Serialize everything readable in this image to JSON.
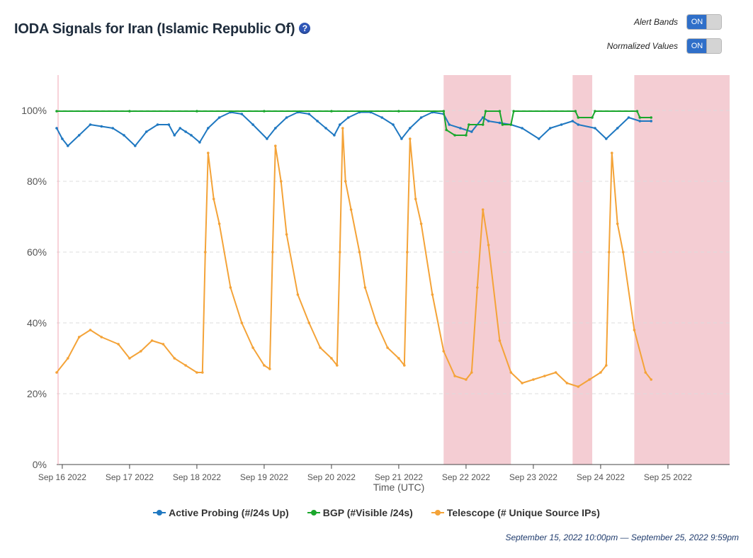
{
  "header": {
    "title": "IODA Signals for Iran (Islamic Republic Of)",
    "help_symbol": "?"
  },
  "toggles": [
    {
      "label": "Alert Bands",
      "state": "ON"
    },
    {
      "label": "Normalized Values",
      "state": "ON"
    }
  ],
  "time_range": "September 15, 2022 10:00pm — September 25, 2022 9:59pm",
  "colors": {
    "active_probing": "#1f78c1",
    "bgp": "#1aa72c",
    "telescope": "#f4a338",
    "alert_band": "#f4cdd3",
    "toggle_on": "#2f6fc9"
  },
  "chart_data": {
    "type": "line",
    "xlabel": "Time (UTC)",
    "ylabel": "",
    "x_domain": [
      "2022-09-15 22:00",
      "2022-09-25 22:00"
    ],
    "ylim": [
      0,
      110
    ],
    "y_ticks": [
      0,
      20,
      40,
      60,
      80,
      100
    ],
    "y_tick_labels": [
      "0%",
      "20%",
      "40%",
      "60%",
      "80%",
      "100%"
    ],
    "x_ticks": [
      {
        "x": "2022-09-16 00:00",
        "label": "Sep 16 2022"
      },
      {
        "x": "2022-09-17 00:00",
        "label": "Sep 17 2022"
      },
      {
        "x": "2022-09-18 00:00",
        "label": "Sep 18 2022"
      },
      {
        "x": "2022-09-19 00:00",
        "label": "Sep 19 2022"
      },
      {
        "x": "2022-09-20 00:00",
        "label": "Sep 20 2022"
      },
      {
        "x": "2022-09-21 00:00",
        "label": "Sep 21 2022"
      },
      {
        "x": "2022-09-22 00:00",
        "label": "Sep 22 2022"
      },
      {
        "x": "2022-09-23 00:00",
        "label": "Sep 23 2022"
      },
      {
        "x": "2022-09-24 00:00",
        "label": "Sep 24 2022"
      },
      {
        "x": "2022-09-25 00:00",
        "label": "Sep 25 2022"
      }
    ],
    "grid": true,
    "legend_position": "bottom",
    "alert_bands": [
      {
        "start": "2022-09-21 16:00",
        "end": "2022-09-22 16:00"
      },
      {
        "start": "2022-09-23 14:00",
        "end": "2022-09-23 21:00"
      },
      {
        "start": "2022-09-24 12:00",
        "end": "2022-09-25 22:00"
      }
    ],
    "series": [
      {
        "name": "Active Probing (#/24s Up)",
        "color_key": "active_probing",
        "points": [
          [
            "2022-09-15 22:00",
            95
          ],
          [
            "2022-09-16 00:00",
            92
          ],
          [
            "2022-09-16 02:00",
            90
          ],
          [
            "2022-09-16 06:00",
            93
          ],
          [
            "2022-09-16 10:00",
            96
          ],
          [
            "2022-09-16 14:00",
            95.5
          ],
          [
            "2022-09-16 18:00",
            95
          ],
          [
            "2022-09-16 22:00",
            93
          ],
          [
            "2022-09-17 02:00",
            90
          ],
          [
            "2022-09-17 06:00",
            94
          ],
          [
            "2022-09-17 10:00",
            96
          ],
          [
            "2022-09-17 14:00",
            96
          ],
          [
            "2022-09-17 16:00",
            93
          ],
          [
            "2022-09-17 18:00",
            95
          ],
          [
            "2022-09-17 20:00",
            94
          ],
          [
            "2022-09-17 22:00",
            93
          ],
          [
            "2022-09-18 01:00",
            91
          ],
          [
            "2022-09-18 04:00",
            95
          ],
          [
            "2022-09-18 08:00",
            98
          ],
          [
            "2022-09-18 12:00",
            99.5
          ],
          [
            "2022-09-18 16:00",
            99
          ],
          [
            "2022-09-18 20:00",
            96
          ],
          [
            "2022-09-19 01:00",
            92
          ],
          [
            "2022-09-19 04:00",
            95
          ],
          [
            "2022-09-19 08:00",
            98
          ],
          [
            "2022-09-19 12:00",
            99.5
          ],
          [
            "2022-09-19 16:00",
            99
          ],
          [
            "2022-09-19 19:00",
            97
          ],
          [
            "2022-09-19 22:00",
            95
          ],
          [
            "2022-09-20 01:00",
            93
          ],
          [
            "2022-09-20 03:00",
            96
          ],
          [
            "2022-09-20 06:00",
            98
          ],
          [
            "2022-09-20 10:00",
            99.5
          ],
          [
            "2022-09-20 14:00",
            99.5
          ],
          [
            "2022-09-20 18:00",
            98
          ],
          [
            "2022-09-20 22:00",
            96
          ],
          [
            "2022-09-21 01:00",
            92
          ],
          [
            "2022-09-21 04:00",
            95
          ],
          [
            "2022-09-21 08:00",
            98
          ],
          [
            "2022-09-21 12:00",
            99.5
          ],
          [
            "2022-09-21 16:00",
            99
          ],
          [
            "2022-09-21 18:00",
            96
          ],
          [
            "2022-09-21 22:00",
            95
          ],
          [
            "2022-09-22 02:00",
            94
          ],
          [
            "2022-09-22 06:00",
            98
          ],
          [
            "2022-09-22 08:00",
            97
          ],
          [
            "2022-09-22 12:00",
            96.5
          ],
          [
            "2022-09-22 16:00",
            96
          ],
          [
            "2022-09-22 20:00",
            95
          ],
          [
            "2022-09-23 02:00",
            92
          ],
          [
            "2022-09-23 06:00",
            95
          ],
          [
            "2022-09-23 10:00",
            96
          ],
          [
            "2022-09-23 14:00",
            97
          ],
          [
            "2022-09-23 16:00",
            96
          ],
          [
            "2022-09-23 22:00",
            95
          ],
          [
            "2022-09-24 02:00",
            92
          ],
          [
            "2022-09-24 06:00",
            95
          ],
          [
            "2022-09-24 10:00",
            98
          ],
          [
            "2022-09-24 14:00",
            97
          ],
          [
            "2022-09-24 18:00",
            97
          ]
        ]
      },
      {
        "name": "BGP (#Visible /24s)",
        "color_key": "bgp",
        "points": [
          [
            "2022-09-15 22:00",
            99.8
          ],
          [
            "2022-09-17 00:00",
            99.8
          ],
          [
            "2022-09-18 00:00",
            99.8
          ],
          [
            "2022-09-19 00:00",
            99.8
          ],
          [
            "2022-09-20 00:00",
            99.8
          ],
          [
            "2022-09-21 00:00",
            99.8
          ],
          [
            "2022-09-21 16:00",
            99.8
          ],
          [
            "2022-09-21 17:00",
            94.5
          ],
          [
            "2022-09-21 20:00",
            93
          ],
          [
            "2022-09-22 00:00",
            93
          ],
          [
            "2022-09-22 01:00",
            96
          ],
          [
            "2022-09-22 06:00",
            96
          ],
          [
            "2022-09-22 07:00",
            99.8
          ],
          [
            "2022-09-22 12:00",
            99.8
          ],
          [
            "2022-09-22 13:00",
            96
          ],
          [
            "2022-09-22 16:00",
            96
          ],
          [
            "2022-09-22 17:00",
            99.8
          ],
          [
            "2022-09-23 15:00",
            99.8
          ],
          [
            "2022-09-23 16:00",
            98
          ],
          [
            "2022-09-23 21:00",
            98
          ],
          [
            "2022-09-23 22:00",
            99.8
          ],
          [
            "2022-09-24 13:00",
            99.8
          ],
          [
            "2022-09-24 14:00",
            98
          ],
          [
            "2022-09-24 18:00",
            98
          ]
        ]
      },
      {
        "name": "Telescope (# Unique Source IPs)",
        "color_key": "telescope",
        "points": [
          [
            "2022-09-15 22:00",
            26
          ],
          [
            "2022-09-16 02:00",
            30
          ],
          [
            "2022-09-16 06:00",
            36
          ],
          [
            "2022-09-16 10:00",
            38
          ],
          [
            "2022-09-16 14:00",
            36
          ],
          [
            "2022-09-16 20:00",
            34
          ],
          [
            "2022-09-17 00:00",
            30
          ],
          [
            "2022-09-17 04:00",
            32
          ],
          [
            "2022-09-17 08:00",
            35
          ],
          [
            "2022-09-17 12:00",
            34
          ],
          [
            "2022-09-17 16:00",
            30
          ],
          [
            "2022-09-17 20:00",
            28
          ],
          [
            "2022-09-18 00:00",
            26
          ],
          [
            "2022-09-18 02:00",
            26
          ],
          [
            "2022-09-18 03:00",
            60
          ],
          [
            "2022-09-18 04:00",
            88
          ],
          [
            "2022-09-18 06:00",
            75
          ],
          [
            "2022-09-18 08:00",
            68
          ],
          [
            "2022-09-18 12:00",
            50
          ],
          [
            "2022-09-18 16:00",
            40
          ],
          [
            "2022-09-18 20:00",
            33
          ],
          [
            "2022-09-19 00:00",
            28
          ],
          [
            "2022-09-19 02:00",
            27
          ],
          [
            "2022-09-19 03:00",
            60
          ],
          [
            "2022-09-19 04:00",
            90
          ],
          [
            "2022-09-19 06:00",
            80
          ],
          [
            "2022-09-19 08:00",
            65
          ],
          [
            "2022-09-19 12:00",
            48
          ],
          [
            "2022-09-19 16:00",
            40
          ],
          [
            "2022-09-19 20:00",
            33
          ],
          [
            "2022-09-20 00:00",
            30
          ],
          [
            "2022-09-20 02:00",
            28
          ],
          [
            "2022-09-20 03:00",
            60
          ],
          [
            "2022-09-20 04:00",
            95
          ],
          [
            "2022-09-20 05:00",
            80
          ],
          [
            "2022-09-20 07:00",
            72
          ],
          [
            "2022-09-20 10:00",
            60
          ],
          [
            "2022-09-20 12:00",
            50
          ],
          [
            "2022-09-20 16:00",
            40
          ],
          [
            "2022-09-20 20:00",
            33
          ],
          [
            "2022-09-21 00:00",
            30
          ],
          [
            "2022-09-21 02:00",
            28
          ],
          [
            "2022-09-21 03:00",
            60
          ],
          [
            "2022-09-21 04:00",
            92
          ],
          [
            "2022-09-21 06:00",
            75
          ],
          [
            "2022-09-21 08:00",
            68
          ],
          [
            "2022-09-21 12:00",
            48
          ],
          [
            "2022-09-21 16:00",
            32
          ],
          [
            "2022-09-21 20:00",
            25
          ],
          [
            "2022-09-22 00:00",
            24
          ],
          [
            "2022-09-22 02:00",
            26
          ],
          [
            "2022-09-22 04:00",
            50
          ],
          [
            "2022-09-22 06:00",
            72
          ],
          [
            "2022-09-22 08:00",
            62
          ],
          [
            "2022-09-22 12:00",
            35
          ],
          [
            "2022-09-22 16:00",
            26
          ],
          [
            "2022-09-22 20:00",
            23
          ],
          [
            "2022-09-23 00:00",
            24
          ],
          [
            "2022-09-23 04:00",
            25
          ],
          [
            "2022-09-23 08:00",
            26
          ],
          [
            "2022-09-23 12:00",
            23
          ],
          [
            "2022-09-23 16:00",
            22
          ],
          [
            "2022-09-23 20:00",
            24
          ],
          [
            "2022-09-24 00:00",
            26
          ],
          [
            "2022-09-24 02:00",
            28
          ],
          [
            "2022-09-24 03:00",
            60
          ],
          [
            "2022-09-24 04:00",
            88
          ],
          [
            "2022-09-24 06:00",
            68
          ],
          [
            "2022-09-24 08:00",
            60
          ],
          [
            "2022-09-24 12:00",
            38
          ],
          [
            "2022-09-24 16:00",
            26
          ],
          [
            "2022-09-24 18:00",
            24
          ]
        ]
      }
    ]
  }
}
